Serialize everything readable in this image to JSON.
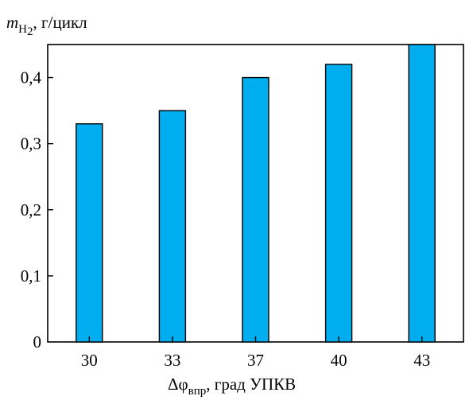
{
  "chart_data": {
    "type": "bar",
    "categories": [
      "30",
      "33",
      "37",
      "40",
      "43"
    ],
    "values": [
      0.33,
      0.35,
      0.4,
      0.42,
      0.45
    ],
    "ylabel": {
      "symbol": "m",
      "sub_main": "H",
      "sub_index": "2",
      "unit": ", г/цикл"
    },
    "xlabel": {
      "symbol": "Δφ",
      "sub": "впр",
      "unit": ", град УПКВ"
    },
    "ylim": [
      0,
      0.45
    ],
    "yticks": [
      0,
      0.1,
      0.2,
      0.3,
      0.4
    ],
    "ytick_labels": [
      "0",
      "0,1",
      "0,2",
      "0,3",
      "0,4"
    ],
    "bar_color": "#00AEEF",
    "grid": false,
    "legend": "none"
  }
}
